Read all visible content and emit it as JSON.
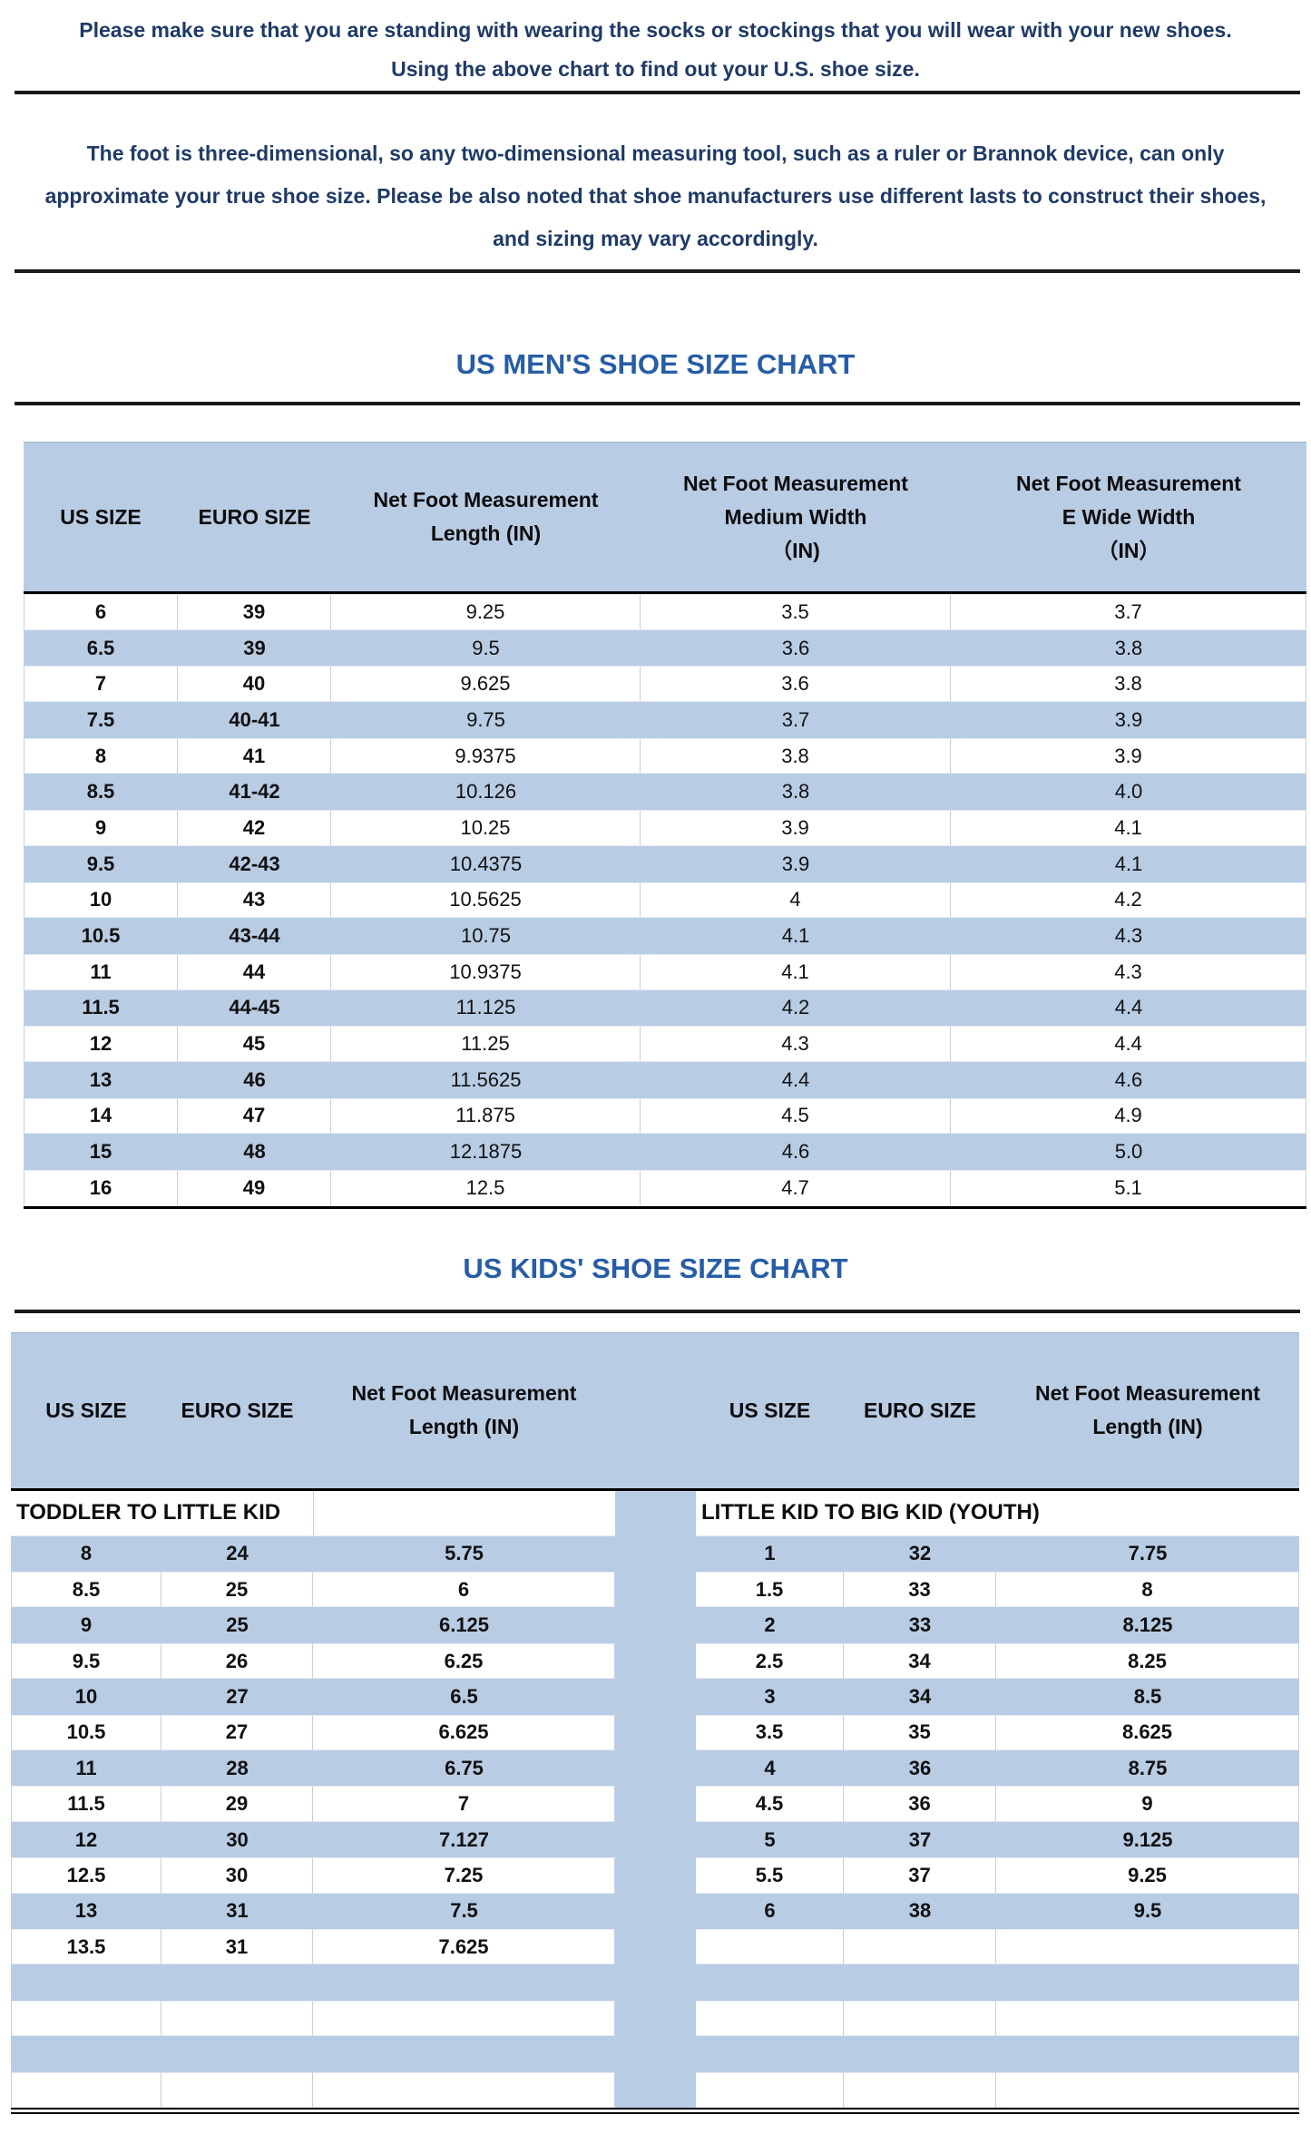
{
  "document": {
    "intro_note_1": {
      "line1": "Please make sure that you are standing with wearing the socks or stockings that you will wear with your new shoes.",
      "line2": "Using the above chart to find out your U.S. shoe size."
    },
    "intro_note_2": "The foot is three-dimensional, so any two-dimensional measuring tool, such as a ruler or Brannok device, can only approximate your true shoe size. Please be also noted that shoe manufacturers use different lasts to construct their shoes, and sizing may vary accordingly."
  },
  "mens_chart": {
    "title": "US MEN'S SHOE SIZE CHART",
    "columns": [
      "US SIZE",
      "EURO SIZE",
      "Net Foot Measurement\nLength (IN)",
      "Net Foot Measurement\nMedium Width\n（IN)",
      "Net Foot Measurement\nE Wide Width\n（IN）"
    ],
    "rows": [
      [
        "6",
        "39",
        "9.25",
        "3.5",
        "3.7"
      ],
      [
        "6.5",
        "39",
        "9.5",
        "3.6",
        "3.8"
      ],
      [
        "7",
        "40",
        "9.625",
        "3.6",
        "3.8"
      ],
      [
        "7.5",
        "40-41",
        "9.75",
        "3.7",
        "3.9"
      ],
      [
        "8",
        "41",
        "9.9375",
        "3.8",
        "3.9"
      ],
      [
        "8.5",
        "41-42",
        "10.126",
        "3.8",
        "4.0"
      ],
      [
        "9",
        "42",
        "10.25",
        "3.9",
        "4.1"
      ],
      [
        "9.5",
        "42-43",
        "10.4375",
        "3.9",
        "4.1"
      ],
      [
        "10",
        "43",
        "10.5625",
        "4",
        "4.2"
      ],
      [
        "10.5",
        "43-44",
        "10.75",
        "4.1",
        "4.3"
      ],
      [
        "11",
        "44",
        "10.9375",
        "4.1",
        "4.3"
      ],
      [
        "11.5",
        "44-45",
        "11.125",
        "4.2",
        "4.4"
      ],
      [
        "12",
        "45",
        "11.25",
        "4.3",
        "4.4"
      ],
      [
        "13",
        "46",
        "11.5625",
        "4.4",
        "4.6"
      ],
      [
        "14",
        "47",
        "11.875",
        "4.5",
        "4.9"
      ],
      [
        "15",
        "48",
        "12.1875",
        "4.6",
        "5.0"
      ],
      [
        "16",
        "49",
        "12.5",
        "4.7",
        "5.1"
      ]
    ]
  },
  "kids_chart": {
    "title": "US KIDS' SHOE SIZE CHART",
    "columns": [
      "US SIZE",
      "EURO SIZE",
      "Net Foot Measurement\nLength (IN)",
      "US SIZE",
      "EURO SIZE",
      "Net Foot Measurement\nLength (IN)"
    ],
    "section_labels": {
      "left": "TODDLER TO LITTLE KID",
      "right": "LITTLE KID TO BIG KID (YOUTH)"
    },
    "rows": [
      [
        "8",
        "24",
        "5.75",
        "1",
        "32",
        "7.75"
      ],
      [
        "8.5",
        "25",
        "6",
        "1.5",
        "33",
        "8"
      ],
      [
        "9",
        "25",
        "6.125",
        "2",
        "33",
        "8.125"
      ],
      [
        "9.5",
        "26",
        "6.25",
        "2.5",
        "34",
        "8.25"
      ],
      [
        "10",
        "27",
        "6.5",
        "3",
        "34",
        "8.5"
      ],
      [
        "10.5",
        "27",
        "6.625",
        "3.5",
        "35",
        "8.625"
      ],
      [
        "11",
        "28",
        "6.75",
        "4",
        "36",
        "8.75"
      ],
      [
        "11.5",
        "29",
        "7",
        "4.5",
        "36",
        "9"
      ],
      [
        "12",
        "30",
        "7.127",
        "5",
        "37",
        "9.125"
      ],
      [
        "12.5",
        "30",
        "7.25",
        "5.5",
        "37",
        "9.25"
      ],
      [
        "13",
        "31",
        "7.5",
        "6",
        "38",
        "9.5"
      ],
      [
        "13.5",
        "31",
        "7.625",
        "",
        "",
        ""
      ],
      [
        "",
        "",
        "",
        "",
        "",
        ""
      ],
      [
        "",
        "",
        "",
        "",
        "",
        ""
      ],
      [
        "",
        "",
        "",
        "",
        "",
        ""
      ],
      [
        "",
        "",
        "",
        "",
        "",
        ""
      ]
    ]
  },
  "colors": {
    "band_blue": "#b8cce4",
    "title_blue": "#275da6",
    "note_navy": "#1f3a67"
  }
}
